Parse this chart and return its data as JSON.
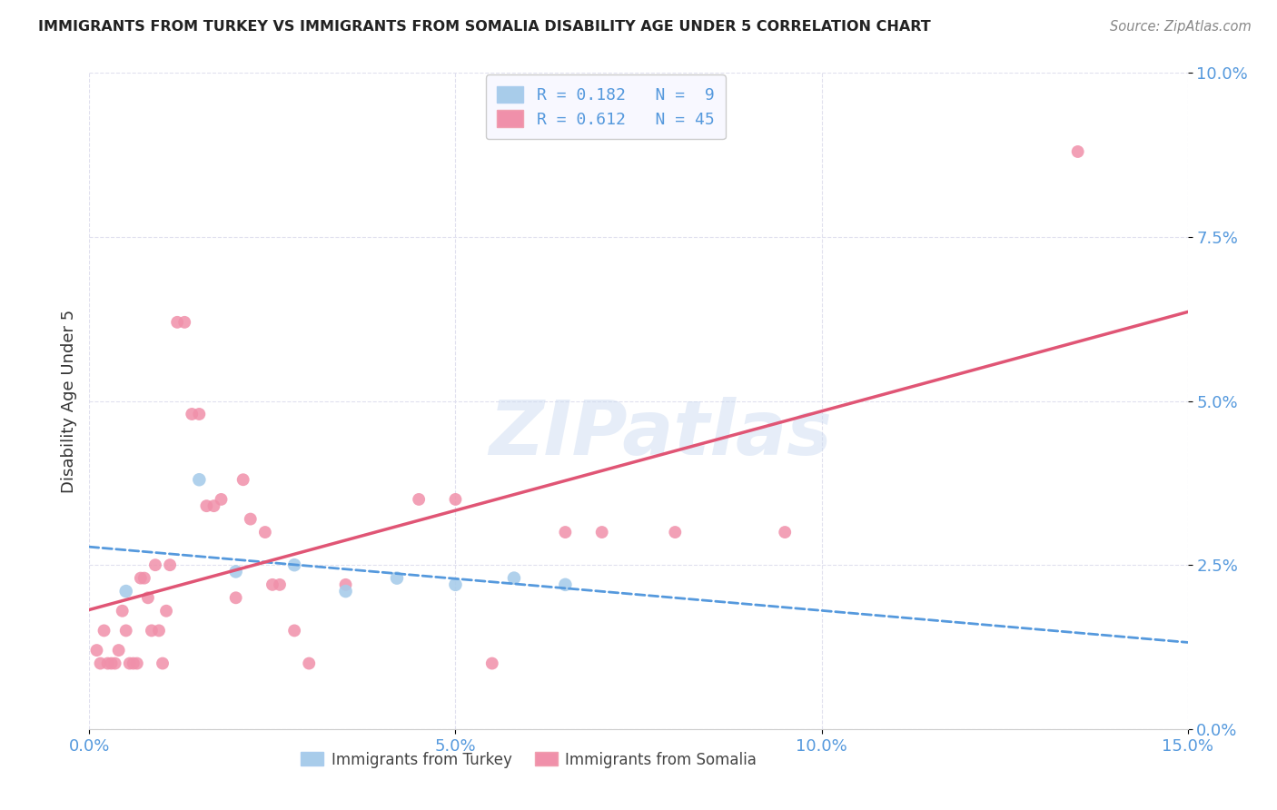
{
  "title": "IMMIGRANTS FROM TURKEY VS IMMIGRANTS FROM SOMALIA DISABILITY AGE UNDER 5 CORRELATION CHART",
  "source": "Source: ZipAtlas.com",
  "ylabel": "Disability Age Under 5",
  "xlim": [
    0.0,
    15.0
  ],
  "ylim": [
    0.0,
    10.0
  ],
  "xtick_vals": [
    0.0,
    5.0,
    10.0,
    15.0
  ],
  "ytick_vals": [
    0.0,
    2.5,
    5.0,
    7.5,
    10.0
  ],
  "turkey_R": 0.182,
  "turkey_N": 9,
  "somalia_R": 0.612,
  "somalia_N": 45,
  "turkey_color": "#a8ccea",
  "somalia_color": "#f090aa",
  "turkey_line_color": "#5599dd",
  "somalia_line_color": "#e05575",
  "turkey_scatter_x": [
    0.5,
    1.5,
    2.0,
    2.8,
    3.5,
    4.2,
    5.0,
    5.8,
    6.5
  ],
  "turkey_scatter_y": [
    2.1,
    3.8,
    2.4,
    2.5,
    2.1,
    2.3,
    2.2,
    2.3,
    2.2
  ],
  "somalia_scatter_x": [
    0.1,
    0.15,
    0.2,
    0.25,
    0.3,
    0.35,
    0.4,
    0.45,
    0.5,
    0.55,
    0.6,
    0.65,
    0.7,
    0.75,
    0.8,
    0.85,
    0.9,
    0.95,
    1.0,
    1.05,
    1.1,
    1.2,
    1.3,
    1.4,
    1.5,
    1.6,
    1.7,
    1.8,
    2.0,
    2.1,
    2.2,
    2.4,
    2.5,
    2.6,
    2.8,
    3.0,
    3.5,
    4.5,
    5.0,
    5.5,
    6.5,
    7.0,
    8.0,
    9.5,
    13.5
  ],
  "somalia_scatter_y": [
    1.2,
    1.0,
    1.5,
    1.0,
    1.0,
    1.0,
    1.2,
    1.8,
    1.5,
    1.0,
    1.0,
    1.0,
    2.3,
    2.3,
    2.0,
    1.5,
    2.5,
    1.5,
    1.0,
    1.8,
    2.5,
    6.2,
    6.2,
    4.8,
    4.8,
    3.4,
    3.4,
    3.5,
    2.0,
    3.8,
    3.2,
    3.0,
    2.2,
    2.2,
    1.5,
    1.0,
    2.2,
    3.5,
    3.5,
    1.0,
    3.0,
    3.0,
    3.0,
    3.0,
    8.8
  ],
  "watermark_text": "ZIPatlas",
  "background_color": "#ffffff",
  "grid_color": "#e0e0ee",
  "tick_color": "#5599dd",
  "title_color": "#222222",
  "source_color": "#888888",
  "ylabel_color": "#333333"
}
